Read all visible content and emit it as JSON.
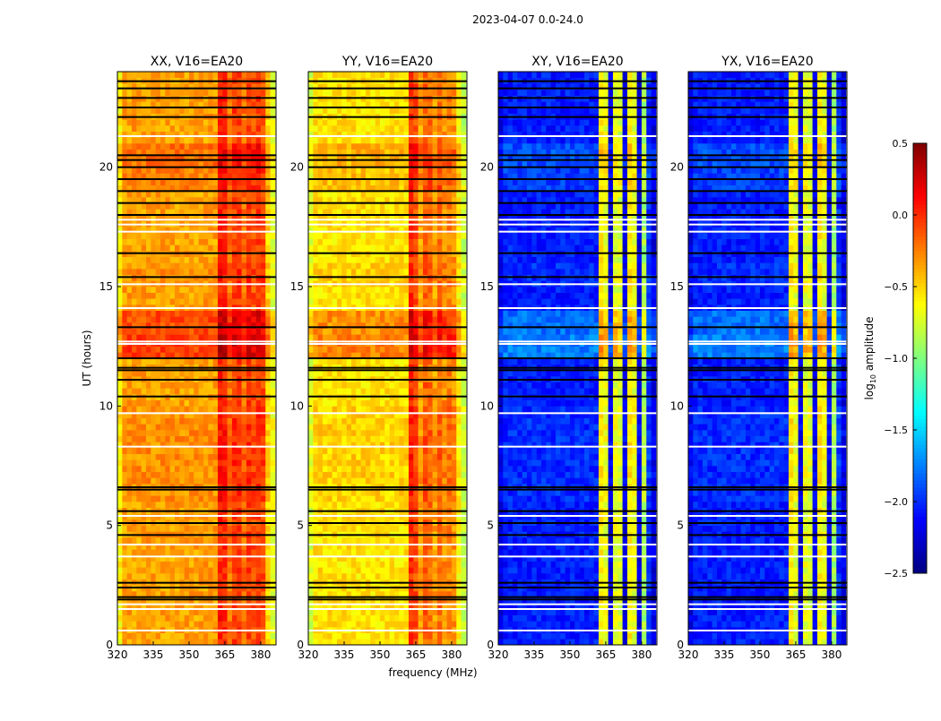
{
  "chart_data": {
    "type": "heatmap",
    "title": "2023-04-07 0.0-24.0",
    "xlabel": "frequency (MHz)",
    "ylabel": "UT (hours)",
    "xlim": [
      320,
      386.4
    ],
    "ylim": [
      0,
      24
    ],
    "xticks": [
      "320",
      "335",
      "350",
      "365",
      "380"
    ],
    "xtick_values": [
      320,
      335,
      350,
      365,
      380
    ],
    "yticks": [
      "0",
      "5",
      "10",
      "15",
      "20"
    ],
    "ytick_values": [
      0,
      5,
      10,
      15,
      20
    ],
    "freq_bin_width_mhz": 2,
    "freq_bin_start_mhz": 320,
    "panels": [
      {
        "title": "XX, V16=EA20",
        "freq_profile": [
          -0.6,
          -0.35,
          -0.35,
          -0.35,
          -0.35,
          -0.35,
          -0.35,
          -0.35,
          -0.35,
          -0.35,
          -0.35,
          -0.35,
          -0.35,
          -0.35,
          -0.35,
          -0.35,
          -0.35,
          -0.35,
          -0.35,
          -0.35,
          -0.35,
          0.05,
          0.0,
          -0.2,
          -0.05,
          -0.05,
          -0.2,
          -0.05,
          -0.1,
          -0.05,
          -0.1,
          -0.5,
          -0.7
        ]
      },
      {
        "title": "YY, V16=EA20",
        "freq_profile": [
          -0.75,
          -0.55,
          -0.55,
          -0.55,
          -0.55,
          -0.55,
          -0.55,
          -0.55,
          -0.55,
          -0.55,
          -0.55,
          -0.55,
          -0.55,
          -0.55,
          -0.55,
          -0.55,
          -0.55,
          -0.55,
          -0.55,
          -0.55,
          -0.55,
          0.0,
          -0.1,
          -0.35,
          -0.15,
          -0.2,
          -0.35,
          -0.2,
          -0.3,
          -0.25,
          -0.3,
          -0.6,
          -0.8
        ]
      },
      {
        "title": "XY, V16=EA20",
        "freq_profile": [
          -2.2,
          -2.05,
          -2.05,
          -2.05,
          -2.05,
          -2.05,
          -2.05,
          -2.05,
          -2.05,
          -2.05,
          -2.05,
          -2.05,
          -2.05,
          -2.05,
          -2.05,
          -2.05,
          -2.05,
          -2.05,
          -2.05,
          -2.05,
          -2.05,
          -0.6,
          -0.7,
          -2.2,
          -0.7,
          -0.75,
          -2.2,
          -0.6,
          -0.7,
          -2.2,
          -0.9,
          -2.0,
          -2.2
        ]
      },
      {
        "title": "YX, V16=EA20",
        "freq_profile": [
          -2.2,
          -2.05,
          -2.05,
          -2.05,
          -2.05,
          -2.05,
          -2.05,
          -2.05,
          -2.05,
          -2.05,
          -2.05,
          -2.05,
          -2.05,
          -2.05,
          -2.05,
          -2.05,
          -2.05,
          -2.05,
          -2.05,
          -2.05,
          -2.05,
          -0.6,
          -0.7,
          -2.2,
          -0.7,
          -0.75,
          -2.2,
          -0.6,
          -0.7,
          -2.2,
          -0.9,
          -2.0,
          -2.2
        ]
      }
    ],
    "hour_offset": [
      0,
      0,
      0,
      0,
      0,
      0,
      0.05,
      0.05,
      0.05,
      0.05,
      0,
      0,
      0.3,
      0.25,
      0,
      0.05,
      0,
      0,
      0,
      0.1,
      0.15,
      0,
      0,
      0
    ],
    "flagged_rows_black_hours": [
      1.9,
      2.0,
      2.4,
      2.6,
      4.6,
      5.1,
      5.6,
      6.5,
      6.6,
      10.4,
      11.1,
      11.5,
      11.6,
      12.0,
      13.3,
      15.4,
      16.4,
      18.0,
      18.5,
      19.0,
      19.5,
      20.0,
      20.3,
      20.5,
      22.1,
      22.5,
      22.9,
      23.3,
      23.6
    ],
    "flagged_rows_white_hours": [
      0.6,
      1.5,
      1.7,
      3.7,
      4.2,
      5.4,
      8.3,
      9.7,
      12.6,
      12.7,
      14.1,
      15.1,
      17.3,
      17.6,
      17.8,
      21.3
    ],
    "colorbar": {
      "label": "log10 amplitude",
      "label_main": "log",
      "label_sub": "10",
      "label_rest": " amplitude",
      "colormap": "jet",
      "vmin": -2.5,
      "vmax": 0.5,
      "ticks": [
        "0.5",
        "0.0",
        "−0.5",
        "−1.0",
        "−1.5",
        "−2.0",
        "−2.5"
      ],
      "tick_values": [
        0.5,
        0.0,
        -0.5,
        -1.0,
        -1.5,
        -2.0,
        -2.5
      ]
    }
  }
}
